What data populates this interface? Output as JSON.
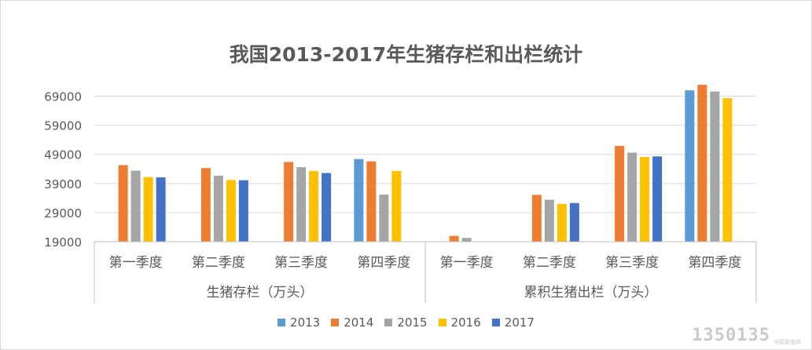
{
  "chart_data": {
    "type": "bar",
    "title": "我国2013-2017年生猪存栏和出栏统计",
    "ylim": [
      19000,
      74000
    ],
    "yticks": [
      19000,
      29000,
      39000,
      49000,
      59000,
      69000
    ],
    "ytick_labels": [
      "19000",
      "29000",
      "39000",
      "49000",
      "59000",
      "69000"
    ],
    "grid": true,
    "legend_position": "bottom",
    "groups": [
      {
        "label": "生猪存栏（万头）",
        "categories": [
          "第一季度",
          "第二季度",
          "第三季度",
          "第四季度"
        ]
      },
      {
        "label": "累积生猪出栏（万头）",
        "categories": [
          "第一季度",
          "第二季度",
          "第三季度",
          "第四季度"
        ]
      }
    ],
    "categories": [
      "第一季度",
      "第二季度",
      "第三季度",
      "第四季度",
      "第一季度",
      "第二季度",
      "第三季度",
      "第四季度"
    ],
    "series": [
      {
        "name": "2013",
        "color": "#5b9bd5",
        "values": [
          null,
          null,
          null,
          47400,
          null,
          null,
          null,
          71000
        ]
      },
      {
        "name": "2014",
        "color": "#ed7d31",
        "values": [
          45300,
          44300,
          46400,
          46600,
          21000,
          35100,
          51900,
          72900
        ]
      },
      {
        "name": "2015",
        "color": "#a5a5a5",
        "values": [
          43400,
          41700,
          44600,
          35200,
          20300,
          33400,
          49600,
          70600
        ]
      },
      {
        "name": "2016",
        "color": "#ffc000",
        "values": [
          41200,
          40200,
          43300,
          43300,
          null,
          32000,
          48100,
          68300
        ]
      },
      {
        "name": "2017",
        "color": "#4472c4",
        "values": [
          41100,
          40100,
          42600,
          null,
          null,
          32300,
          48300,
          null
        ]
      }
    ]
  },
  "watermark": {
    "number": "1350135",
    "caption": "中国家电网"
  }
}
